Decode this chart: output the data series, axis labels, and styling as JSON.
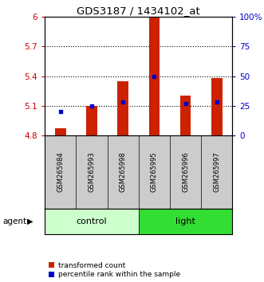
{
  "title": "GDS3187 / 1434102_at",
  "samples": [
    "GSM265984",
    "GSM265993",
    "GSM265998",
    "GSM265995",
    "GSM265996",
    "GSM265997"
  ],
  "red_values": [
    4.87,
    5.1,
    5.35,
    6.0,
    5.2,
    5.38
  ],
  "blue_values": [
    20,
    25,
    28,
    50,
    27,
    28
  ],
  "y_min": 4.8,
  "y_max": 6.0,
  "y_ticks": [
    4.8,
    5.1,
    5.4,
    5.7,
    6.0
  ],
  "y_tick_labels": [
    "4.8",
    "5.1",
    "5.4",
    "5.7",
    "6"
  ],
  "y2_ticks": [
    0,
    25,
    50,
    75,
    100
  ],
  "y2_tick_labels": [
    "0",
    "25",
    "50",
    "75",
    "100%"
  ],
  "left_tick_color": "#cc0000",
  "right_tick_color": "#0000cc",
  "bar_color": "#cc2200",
  "dot_color": "#0000cc",
  "bar_width": 0.35,
  "base_value": 4.8,
  "control_color": "#ccffcc",
  "light_color": "#33dd33",
  "label_bg_color": "#cccccc",
  "grid_ticks": [
    5.1,
    5.4,
    5.7
  ]
}
